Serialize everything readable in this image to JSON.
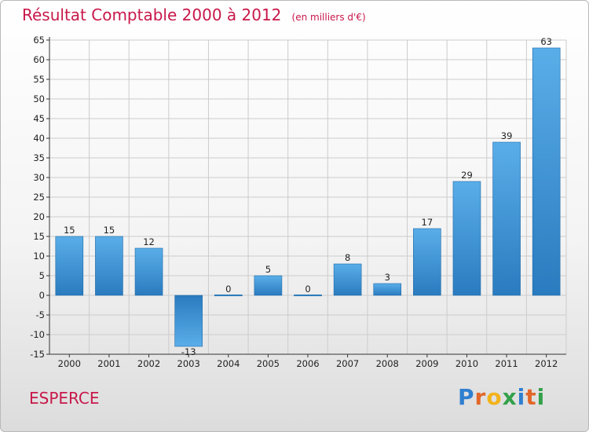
{
  "header": {
    "title": "Résultat Comptable 2000 à 2012",
    "subtitle": "(en milliers d'€)"
  },
  "footer": {
    "commune": "ESPERCE",
    "logo_text": "Proxiti",
    "logo_letters": [
      {
        "char": "P",
        "color": "#2f7fd0"
      },
      {
        "char": "r",
        "color": "#e2672a"
      },
      {
        "char": "o",
        "color": "#f2b31b"
      },
      {
        "char": "x",
        "color": "#33a14a"
      },
      {
        "char": "i",
        "color": "#2f7fd0"
      },
      {
        "char": "t",
        "color": "#e2672a"
      },
      {
        "char": "i",
        "color": "#33a14a"
      }
    ]
  },
  "colors": {
    "title": "#c8184a",
    "bar_light": "#5aaee8",
    "bar_dark": "#2a7bbf",
    "grid": "#cccccc",
    "axis": "#333333"
  },
  "chart_data": {
    "type": "bar",
    "title": "Résultat Comptable 2000 à 2012",
    "subtitle": "(en milliers d'€)",
    "xlabel": "",
    "ylabel": "",
    "categories": [
      "2000",
      "2001",
      "2002",
      "2003",
      "2004",
      "2005",
      "2006",
      "2007",
      "2008",
      "2009",
      "2010",
      "2011",
      "2012"
    ],
    "values": [
      15,
      15,
      12,
      -13,
      0,
      5,
      0,
      8,
      3,
      17,
      29,
      39,
      63
    ],
    "ylim": [
      -15,
      65
    ],
    "yticks": [
      -15,
      -10,
      -5,
      0,
      5,
      10,
      15,
      20,
      25,
      30,
      35,
      40,
      45,
      50,
      55,
      60,
      65
    ],
    "grid": true,
    "legend": "none"
  }
}
